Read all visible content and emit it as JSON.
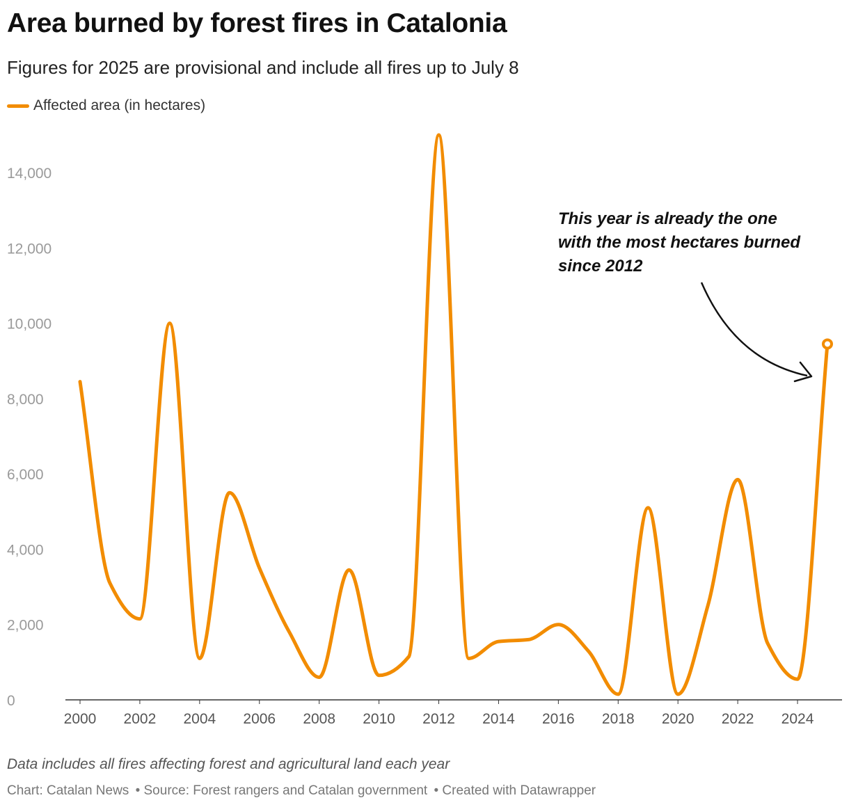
{
  "title": "Area burned by forest fires in Catalonia",
  "subtitle": "Figures for 2025 are provisional and include all fires up to July 8",
  "legend": {
    "label": "Affected area (in hectares)",
    "color": "#f28c00"
  },
  "annotation": {
    "lines": [
      "This year is already the one",
      "with the most hectares burned",
      "since 2012"
    ]
  },
  "note": "Data includes all fires affecting forest and agricultural land each year",
  "footer": {
    "chart": "Chart: Catalan News",
    "source": " • Source: Forest rangers and Catalan government",
    "created": " • Created with Datawrapper"
  },
  "chart_data": {
    "type": "line",
    "title": "Area burned by forest fires in Catalonia",
    "series": [
      {
        "name": "Affected area (in hectares)",
        "color": "#f28c00",
        "x": [
          2000,
          2001,
          2002,
          2003,
          2004,
          2005,
          2006,
          2007,
          2008,
          2009,
          2010,
          2011,
          2012,
          2013,
          2014,
          2015,
          2016,
          2017,
          2018,
          2019,
          2020,
          2021,
          2022,
          2023,
          2024,
          2025
        ],
        "values": [
          8450,
          3100,
          2150,
          10000,
          1100,
          5500,
          3500,
          1800,
          600,
          3450,
          650,
          1150,
          15000,
          1100,
          1550,
          1600,
          2000,
          1300,
          150,
          5100,
          150,
          2500,
          5850,
          1500,
          550,
          9450
        ]
      }
    ],
    "xlabel": "",
    "ylabel": "",
    "x_ticks": [
      "2000",
      "2002",
      "2004",
      "2006",
      "2008",
      "2010",
      "2012",
      "2014",
      "2016",
      "2018",
      "2020",
      "2022",
      "2024"
    ],
    "y_ticks": [
      "0",
      "2,000",
      "4,000",
      "6,000",
      "8,000",
      "10,000",
      "12,000",
      "14,000"
    ],
    "xlim": [
      2000,
      2025
    ],
    "ylim": [
      0,
      15000
    ],
    "grid": false,
    "highlight_last_point": true
  }
}
